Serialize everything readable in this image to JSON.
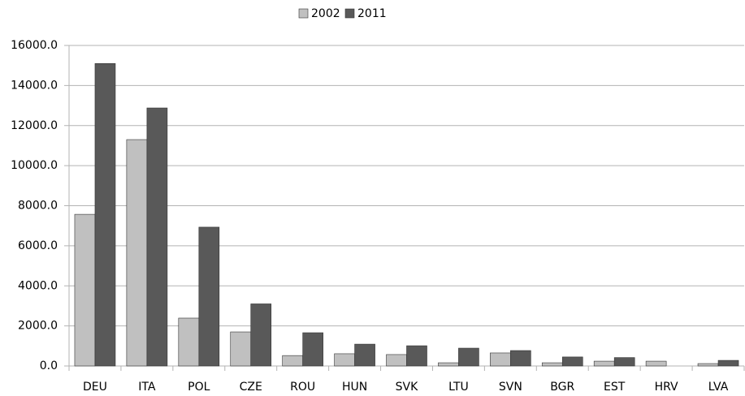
{
  "chart_data": {
    "type": "bar",
    "categories": [
      "DEU",
      "ITA",
      "POL",
      "CZE",
      "ROU",
      "HUN",
      "SVK",
      "LTU",
      "SVN",
      "BGR",
      "EST",
      "HRV",
      "LVA"
    ],
    "series": [
      {
        "name": "2002",
        "color": "#c0c0c0",
        "values": [
          7570,
          11300,
          2390,
          1700,
          520,
          610,
          570,
          160,
          650,
          160,
          240,
          240,
          120
        ]
      },
      {
        "name": "2011",
        "color": "#595959",
        "values": [
          15100,
          12880,
          6930,
          3100,
          1660,
          1090,
          1010,
          890,
          770,
          450,
          420,
          null,
          280
        ]
      }
    ],
    "ylim": [
      0,
      16000
    ],
    "yticks": [
      {
        "value": 0,
        "label": "0.0"
      },
      {
        "value": 2000,
        "label": "2000.0"
      },
      {
        "value": 4000,
        "label": "4000.0"
      },
      {
        "value": 6000,
        "label": "6000.0"
      },
      {
        "value": 8000,
        "label": "8000.0"
      },
      {
        "value": 10000,
        "label": "10000.0"
      },
      {
        "value": 12000,
        "label": "12000.0"
      },
      {
        "value": 14000,
        "label": "14000.0"
      },
      {
        "value": 16000,
        "label": "16000.0"
      }
    ],
    "grid": true,
    "legend": "top"
  }
}
